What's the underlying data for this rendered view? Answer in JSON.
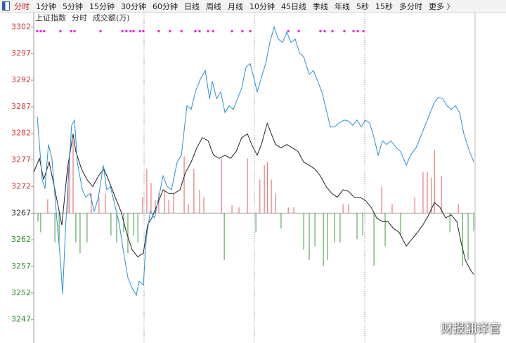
{
  "toolbar": {
    "tabs": [
      "分时",
      "1分钟",
      "5分钟",
      "15分钟",
      "30分钟",
      "60分钟",
      "日线",
      "周线",
      "月线",
      "10分钟",
      "45日线",
      "季线",
      "年线",
      "5秒",
      "15秒",
      "多分时",
      "更多 〉"
    ],
    "active": 0
  },
  "chart_data": {
    "type": "line",
    "header": [
      "上证指数",
      "分时",
      "成交额(万)"
    ],
    "xlim": [
      0,
      240
    ],
    "xticks": [
      60,
      120,
      180,
      240
    ],
    "ylim": [
      3242.6,
      3303.1
    ],
    "yticks": [
      3302,
      3297,
      3292,
      3287,
      3282,
      3277,
      3272,
      3267,
      3262,
      3257,
      3252,
      3247
    ],
    "tick_colors": {
      "up": "#d03c3c",
      "down": "#2e8b2e",
      "flat": "#333333"
    },
    "series": [
      {
        "type": "bar",
        "color": "#e06060",
        "x": [
          7.6,
          18.7,
          19.5,
          21.4,
          31.3,
          35.5,
          39.0,
          59.2,
          61.5,
          63.8,
          66.1,
          68.0,
          71.1,
          73.4,
          76.1,
          81.8,
          84.1,
          87.1,
          90.2,
          92.5,
          102.1,
          107.8,
          111.6,
          116.2,
          123.0,
          125.4,
          127.0,
          129.2,
          131.5,
          138.4,
          141.4,
          168.2,
          171.2,
          189.2,
          194.9,
          207.2,
          211.7,
          214.0,
          216.3,
          217.9,
          221.7,
          230.9
        ],
        "values": [
          3269.6,
          3276.0,
          3278.6,
          3280.6,
          3270.7,
          3270.0,
          3270.7,
          3270.0,
          3275.3,
          3272.7,
          3269.4,
          3270.7,
          3271.4,
          3269.4,
          3270.7,
          3277.7,
          3268.7,
          3275.3,
          3271.4,
          3270.0,
          3277.3,
          3268.5,
          3268.1,
          3277.3,
          3273.3,
          3276.0,
          3276.6,
          3273.3,
          3270.7,
          3268.1,
          3268.1,
          3268.7,
          3268.7,
          3272.0,
          3268.7,
          3270.0,
          3274.7,
          3274.7,
          3273.7,
          3278.9,
          3274.0,
          3268.7
        ]
      },
      {
        "type": "bar",
        "color": "#3c9a3c",
        "x": [
          2.3,
          3.8,
          11.5,
          13.8,
          22.9,
          25.2,
          29.0,
          42.0,
          45.1,
          48.9,
          51.2,
          54.3,
          56.6,
          103.6,
          120.8,
          134.5,
          146.8,
          149.8,
          152.9,
          157.5,
          159.8,
          163.6,
          166.6,
          175.8,
          178.9,
          185.0,
          191.1,
          199.5,
          226.3,
          233.2,
          236.2,
          239.3
        ],
        "values": [
          3265.4,
          3263.4,
          3261.5,
          3261.5,
          3261.5,
          3259.5,
          3261.5,
          3262.8,
          3261.5,
          3263.4,
          3259.5,
          3262.8,
          3261.5,
          3258.2,
          3263.4,
          3264.1,
          3260.1,
          3258.2,
          3260.8,
          3257.1,
          3258.2,
          3261.5,
          3261.5,
          3262.1,
          3262.8,
          3257.1,
          3260.8,
          3262.8,
          3263.4,
          3257.1,
          3258.2,
          3263.7
        ]
      },
      {
        "type": "line",
        "color": "#222222",
        "x": [
          0,
          3.1,
          5.4,
          8.4,
          11.5,
          15.3,
          18.3,
          21.4,
          22.9,
          26.0,
          29.0,
          32.1,
          35.2,
          38.2,
          41.3,
          44.3,
          47.4,
          50.4,
          53.5,
          56.6,
          59.6,
          61.9,
          64.2,
          67.3,
          70.3,
          73.4,
          76.4,
          79.5,
          82.6,
          85.6,
          88.7,
          91.7,
          94.8,
          97.8,
          100.9,
          104.0,
          107.0,
          110.1,
          113.1,
          116.2,
          118.5,
          121.5,
          123.8,
          127.0,
          129.2,
          131.5,
          134.5,
          137.6,
          140.6,
          143.7,
          146.8,
          149.8,
          152.9,
          155.9,
          159.0,
          162.1,
          165.1,
          168.2,
          171.2,
          174.3,
          177.3,
          180.4,
          183.5,
          186.5,
          189.6,
          192.6,
          195.7,
          198.7,
          202.6,
          205.6,
          208.7,
          211.7,
          214.8,
          217.9,
          220.9,
          224.0,
          227.0,
          230.1,
          232.4,
          234.7,
          237.7,
          239.3
        ],
        "values": [
          3274.7,
          3277.3,
          3273.3,
          3276.6,
          3271.4,
          3264.8,
          3275.3,
          3281.9,
          3278.6,
          3275.3,
          3273.3,
          3272.0,
          3274.0,
          3275.3,
          3272.7,
          3270.0,
          3267.4,
          3263.4,
          3260.1,
          3258.8,
          3259.5,
          3264.8,
          3266.1,
          3268.7,
          3271.4,
          3270.7,
          3270.7,
          3271.4,
          3274.7,
          3276.6,
          3279.3,
          3281.2,
          3280.6,
          3277.9,
          3277.3,
          3277.9,
          3277.3,
          3278.6,
          3281.2,
          3281.9,
          3279.9,
          3277.9,
          3279.9,
          3283.9,
          3281.9,
          3279.9,
          3279.3,
          3279.9,
          3279.3,
          3278.6,
          3276.6,
          3276.0,
          3275.3,
          3274.0,
          3272.0,
          3270.7,
          3270.0,
          3271.4,
          3271.1,
          3270.0,
          3270.0,
          3269.4,
          3268.1,
          3266.1,
          3265.4,
          3265.4,
          3264.1,
          3263.4,
          3260.8,
          3262.1,
          3263.4,
          3264.8,
          3266.7,
          3269.0,
          3268.1,
          3266.1,
          3266.7,
          3265.4,
          3261.5,
          3258.2,
          3256.2,
          3255.5
        ]
      },
      {
        "type": "line",
        "color": "#2b8fd6",
        "x": [
          1.9,
          4.6,
          6.1,
          8.0,
          9.9,
          12.2,
          14.5,
          15.7,
          17.2,
          19.1,
          20.6,
          22.2,
          23.7,
          26.4,
          28.3,
          30.6,
          32.9,
          35.2,
          37.8,
          39.7,
          41.7,
          44.0,
          46.6,
          48.9,
          51.2,
          53.5,
          55.8,
          57.3,
          59.6,
          61.2,
          63.4,
          65.7,
          68.0,
          70.3,
          72.6,
          74.9,
          78.0,
          80.3,
          83.3,
          85.6,
          87.9,
          90.6,
          93.3,
          95.6,
          97.1,
          99.4,
          101.7,
          104.0,
          106.3,
          108.5,
          110.8,
          113.1,
          115.4,
          117.7,
          119.2,
          121.5,
          123.8,
          126.1,
          128.4,
          130.7,
          133.0,
          135.3,
          137.6,
          139.9,
          142.2,
          144.5,
          146.8,
          149.8,
          152.1,
          154.4,
          156.7,
          159.0,
          161.3,
          163.6,
          165.9,
          168.9,
          171.2,
          173.5,
          175.8,
          178.1,
          180.4,
          182.7,
          185.0,
          187.3,
          189.6,
          191.9,
          194.2,
          197.2,
          199.5,
          202.6,
          204.9,
          207.9,
          211.0,
          213.3,
          215.6,
          217.9,
          220.1,
          222.4,
          224.7,
          227.0,
          229.3,
          231.6,
          233.9,
          237.0,
          239.3
        ],
        "values": [
          3285.2,
          3273.3,
          3271.6,
          3279.9,
          3277.3,
          3267.4,
          3258.2,
          3251.8,
          3263.4,
          3275.3,
          3283.5,
          3284.5,
          3276.6,
          3271.4,
          3270.0,
          3270.7,
          3267.4,
          3270.0,
          3276.0,
          3271.4,
          3272.0,
          3268.7,
          3264.8,
          3259.5,
          3254.9,
          3252.9,
          3251.6,
          3254.2,
          3253.5,
          3262.1,
          3267.4,
          3266.1,
          3270.0,
          3274.0,
          3272.0,
          3271.4,
          3276.6,
          3277.9,
          3287.2,
          3286.5,
          3289.8,
          3292.2,
          3293.8,
          3288.5,
          3291.8,
          3288.5,
          3289.8,
          3285.9,
          3287.2,
          3286.5,
          3288.5,
          3290.5,
          3294.4,
          3295.1,
          3293.1,
          3289.8,
          3292.5,
          3295.1,
          3299.1,
          3302.0,
          3299.7,
          3299.1,
          3301.0,
          3299.1,
          3299.7,
          3297.1,
          3296.4,
          3293.1,
          3293.8,
          3291.8,
          3289.8,
          3286.5,
          3283.2,
          3283.2,
          3283.9,
          3284.5,
          3284.3,
          3283.5,
          3284.5,
          3283.2,
          3284.5,
          3283.9,
          3281.2,
          3277.9,
          3280.6,
          3279.9,
          3280.6,
          3279.3,
          3278.6,
          3276.0,
          3277.9,
          3279.3,
          3281.9,
          3283.9,
          3285.9,
          3287.8,
          3288.8,
          3288.5,
          3287.2,
          3286.5,
          3287.2,
          3285.9,
          3281.9,
          3278.6,
          3276.6
        ]
      },
      {
        "type": "dot",
        "color": "#e020e0",
        "x": [
          1.9,
          3.8,
          5.7,
          14.5,
          20.3,
          22.2,
          36.3,
          48.2,
          50.4,
          52.7,
          54.3,
          57.7,
          59.6,
          68.0,
          74.1,
          80.3,
          87.9,
          90.2,
          94.8,
          97.5,
          107.8,
          113.5,
          117.7,
          138.4,
          144.1,
          155.9,
          158.2,
          162.4,
          168.9,
          173.9,
          176.2,
          179.3
        ],
        "values": [
          3301.2,
          3301.2,
          3301.2,
          3301.2,
          3301.2,
          3301.2,
          3301.2,
          3301.2,
          3301.2,
          3301.2,
          3301.2,
          3301.2,
          3301.2,
          3301.2,
          3301.2,
          3301.2,
          3301.2,
          3301.2,
          3301.2,
          3301.2,
          3301.2,
          3301.2,
          3301.2,
          3301.2,
          3301.2,
          3301.2,
          3301.2,
          3301.2,
          3301.2,
          3301.2,
          3301.2,
          3301.2
        ]
      }
    ]
  },
  "watermark": "财报翻译官"
}
